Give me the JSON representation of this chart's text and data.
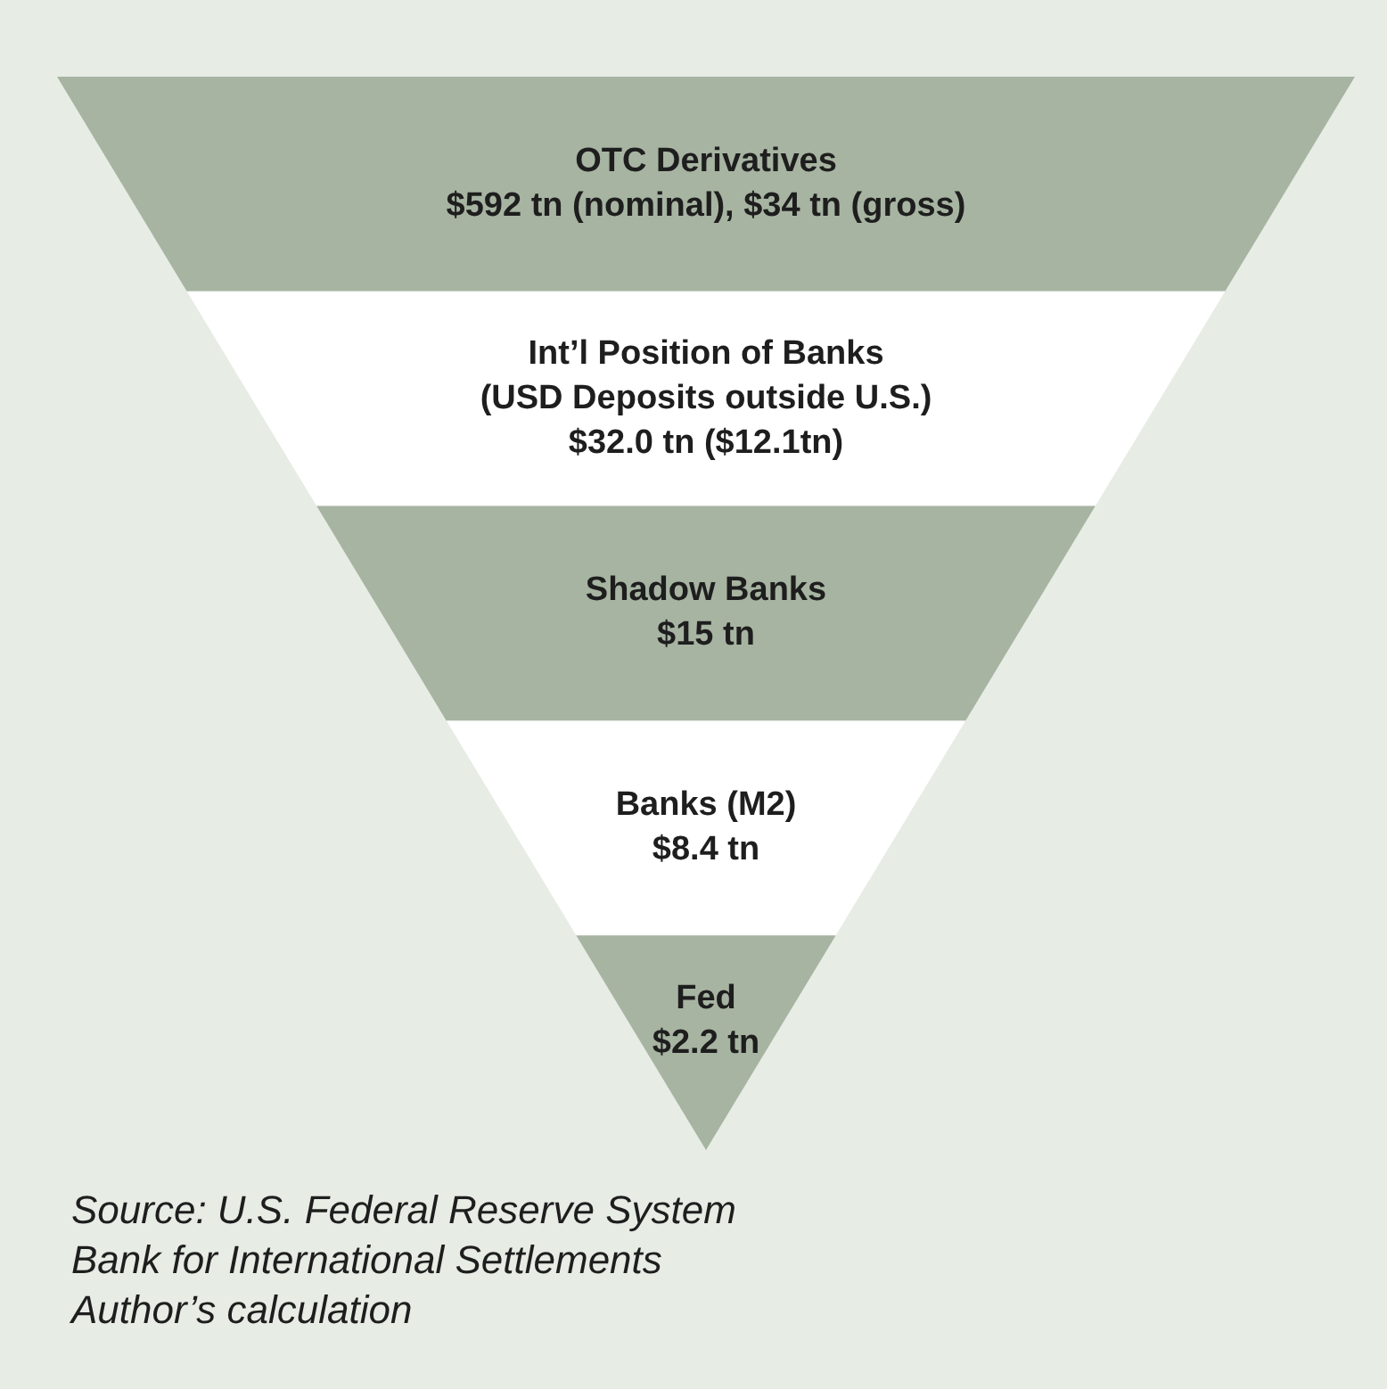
{
  "chart_data": {
    "type": "other",
    "categories": [
      "OTC Derivatives",
      "Int’l Position of Banks\n(USD Deposits outside U.S.)",
      "Shadow Banks",
      "Banks (M2)",
      "Fed"
    ],
    "values": [
      592,
      32.0,
      15,
      8.4,
      2.2
    ],
    "value_labels": [
      "$592 tn (nominal), $34 tn (gross)",
      "$32.0 tn ($12.1tn)",
      "$15 tn",
      "$8.4 tn",
      "$2.2 tn"
    ],
    "colors": [
      "#a7b4a2",
      "#ffffff",
      "#a7b4a2",
      "#ffffff",
      "#a7b4a2"
    ],
    "annotations": [
      "Source: U.S. Federal Reserve System\nBank for International Settlements\nAuthor’s calculation"
    ]
  }
}
